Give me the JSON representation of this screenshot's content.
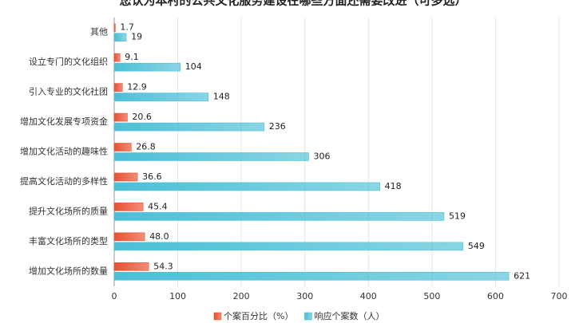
{
  "chart_data": {
    "type": "bar",
    "orientation": "horizontal",
    "title": "您认为本村的公共文化服务建设在哪些方面还需要改进（可多选）",
    "categories": [
      "其他",
      "设立专门的文化组织",
      "引入专业的文化社团",
      "增加文化发展专项资金",
      "增加文化活动的趣味性",
      "提高文化活动的多样性",
      "提升文化场所的质量",
      "丰富文化场所的类型",
      "增加文化场所的数量"
    ],
    "series": [
      {
        "name": "个案百分比（%）",
        "color": "#e8502f",
        "values": [
          1.7,
          9.1,
          12.9,
          20.6,
          26.8,
          36.6,
          45.4,
          48.0,
          54.3
        ],
        "value_labels": [
          "1.7",
          "9.1",
          "12.9",
          "20.6",
          "26.8",
          "36.6",
          "45.4",
          "48.0",
          "54.3"
        ]
      },
      {
        "name": "响应个案数（人）",
        "color": "#4bbfd6",
        "values": [
          19,
          104,
          148,
          236,
          306,
          418,
          519,
          549,
          621
        ]
      }
    ],
    "xlim": [
      0,
      700
    ],
    "xticks": [
      0,
      100,
      200,
      300,
      400,
      500,
      600,
      700
    ],
    "grid": true,
    "legend": "bottom"
  }
}
